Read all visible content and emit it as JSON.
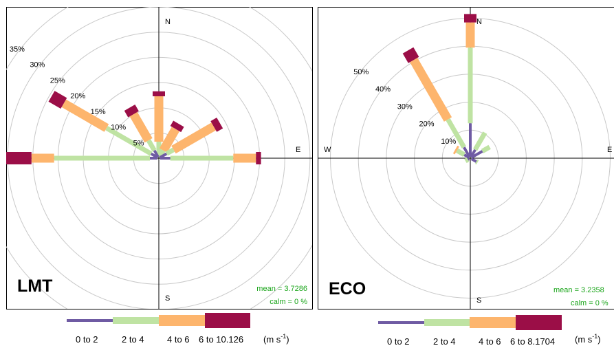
{
  "chart_data": [
    {
      "type": "windrose",
      "site_label": "LMT",
      "directions": [
        "N",
        "E",
        "S",
        "W"
      ],
      "ring_labels": [
        "5%",
        "10%",
        "15%",
        "20%",
        "25%",
        "30%",
        "35%"
      ],
      "ring_values": [
        5,
        10,
        15,
        20,
        25,
        30,
        35
      ],
      "mean_text": "mean = 3.7286",
      "calm_text": "calm = 0 %",
      "petals": [
        {
          "angle": 0,
          "cum": [
            0,
            3,
            12,
            13
          ]
        },
        {
          "angle": 30,
          "cum": [
            0,
            1.5,
            6.4,
            7.6
          ]
        },
        {
          "angle": 60,
          "cum": [
            1.5,
            3.1,
            12.3,
            13.7
          ]
        },
        {
          "angle": 90,
          "cum": [
            2,
            14.5,
            19,
            20
          ]
        },
        {
          "angle": 270,
          "cum": [
            1.5,
            20.5,
            25,
            31
          ]
        },
        {
          "angle": 300,
          "cum": [
            1.5,
            11.7,
            21.5,
            24.3
          ]
        },
        {
          "angle": 330,
          "cum": [
            1.5,
            3.8,
            9.8,
            11.3
          ]
        }
      ],
      "legend": {
        "bins": [
          "0 to 2",
          "2 to 4",
          "4 to 6",
          "6 to 10.126"
        ],
        "units": "(m s",
        "units_sup": "-1",
        "units_close": ")"
      }
    },
    {
      "type": "windrose",
      "site_label": "ECO",
      "directions": [
        "N",
        "E",
        "S",
        "W"
      ],
      "ring_labels": [
        "10%",
        "20%",
        "30%",
        "40%",
        "50%"
      ],
      "ring_values": [
        10,
        20,
        30,
        40,
        50
      ],
      "mean_text": "mean = 3.2358",
      "calm_text": "calm = 0 %",
      "petals": [
        {
          "angle": 0,
          "cum": [
            12,
            39,
            48,
            51
          ]
        },
        {
          "angle": 30,
          "cum": [
            3,
            10,
            10,
            10
          ]
        },
        {
          "angle": 60,
          "cum": [
            4.5,
            7.5,
            7.5,
            7.5
          ]
        },
        {
          "angle": 120,
          "cum": [
            2,
            2.5,
            2.5,
            2.5
          ]
        },
        {
          "angle": 240,
          "cum": [
            0.5,
            1.5,
            1.5,
            1.5
          ]
        },
        {
          "angle": 300,
          "cum": [
            2,
            5,
            5.7,
            5.7
          ]
        },
        {
          "angle": 330,
          "cum": [
            4,
            15.5,
            40,
            44
          ]
        }
      ],
      "legend": {
        "bins": [
          "0 to 2",
          "2 to 4",
          "4 to 6",
          "6 to 8.1704"
        ],
        "units": "(m s",
        "units_sup": "-1",
        "units_close": ")"
      }
    }
  ],
  "colors": {
    "bins": [
      "#6f5ba3",
      "#bfe3a3",
      "#fdb56d",
      "#9b0e47"
    ],
    "mean_text": "#1aa51a",
    "rings": "#c8c8c8"
  }
}
